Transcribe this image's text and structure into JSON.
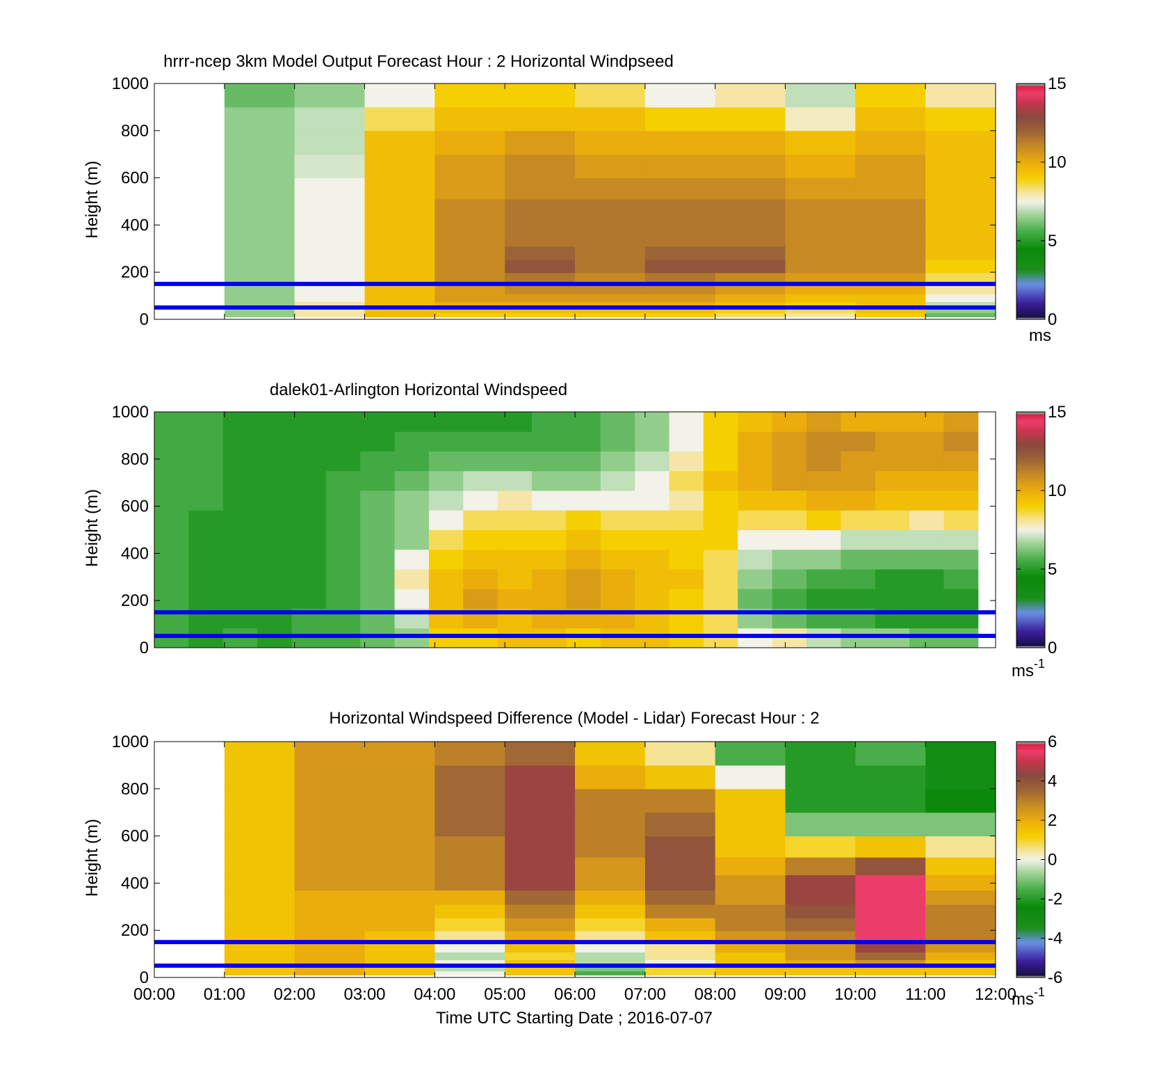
{
  "figure": {
    "shared_xlabel": "Time UTC  Starting Date ; 2016-07-07",
    "x_tick_labels": [
      "00:00",
      "01:00",
      "02:00",
      "03:00",
      "04:00",
      "05:00",
      "06:00",
      "07:00",
      "08:00",
      "09:00",
      "10:00",
      "11:00",
      "12:00"
    ],
    "overlay_line_color": "#0000ee",
    "overlay_heights_m": [
      50,
      150
    ]
  },
  "chart_data": [
    {
      "type": "heatmap",
      "title": "hrrr-ncep 3km Model Output   Forecast Hour : 2 Horizontal Windpseed",
      "ylabel": "Height (m)",
      "xlabel": "",
      "ylim": [
        0,
        1000
      ],
      "y_ticks": [
        0,
        200,
        400,
        600,
        800,
        1000
      ],
      "colorbar": {
        "range": [
          0,
          15
        ],
        "ticks": [
          0,
          5,
          10,
          15
        ],
        "unit": "ms",
        "unit_exp": ""
      },
      "x_hours": [
        1,
        2,
        3,
        4,
        5,
        6,
        7,
        8,
        9,
        10,
        11
      ],
      "y_levels_m": [
        20,
        35,
        60,
        90,
        125,
        170,
        225,
        280,
        340,
        400,
        470,
        550,
        650,
        750,
        850,
        950
      ],
      "values": [
        [
          6.5,
          8.0,
          9.5,
          9.0,
          9.0,
          9.0,
          9.0,
          8.5,
          8.0,
          9.0,
          6.0
        ],
        [
          6.5,
          8.0,
          9.5,
          9.5,
          9.5,
          9.5,
          9.5,
          9.0,
          8.5,
          9.5,
          6.5
        ],
        [
          6.5,
          8.0,
          9.5,
          10.0,
          10.0,
          10.0,
          10.0,
          9.5,
          9.0,
          9.5,
          7.0
        ],
        [
          6.5,
          7.5,
          9.5,
          10.5,
          10.5,
          10.5,
          10.5,
          10.0,
          9.5,
          9.5,
          7.5
        ],
        [
          6.5,
          7.5,
          9.5,
          10.5,
          11.0,
          11.0,
          11.0,
          10.5,
          10.0,
          10.0,
          8.0
        ],
        [
          6.5,
          7.5,
          9.5,
          11.0,
          11.5,
          11.0,
          11.5,
          11.0,
          10.5,
          10.5,
          8.5
        ],
        [
          6.5,
          7.5,
          9.5,
          11.0,
          12.5,
          11.5,
          12.5,
          12.5,
          11.0,
          11.0,
          9.0
        ],
        [
          6.5,
          7.5,
          9.5,
          11.0,
          12.0,
          11.5,
          12.0,
          12.0,
          11.0,
          11.0,
          9.5
        ],
        [
          6.5,
          7.5,
          9.5,
          11.0,
          11.5,
          11.5,
          11.5,
          11.5,
          11.0,
          11.0,
          9.5
        ],
        [
          6.5,
          7.5,
          9.5,
          11.0,
          11.5,
          11.5,
          11.5,
          11.5,
          11.0,
          11.0,
          9.5
        ],
        [
          6.5,
          7.5,
          9.5,
          11.0,
          11.5,
          11.5,
          11.5,
          11.5,
          11.0,
          11.0,
          9.5
        ],
        [
          6.5,
          7.5,
          9.5,
          10.5,
          11.0,
          11.0,
          11.0,
          11.0,
          10.5,
          10.5,
          9.5
        ],
        [
          6.5,
          7.2,
          9.5,
          10.5,
          11.0,
          10.5,
          10.5,
          10.5,
          10.0,
          10.5,
          9.5
        ],
        [
          6.5,
          7.0,
          9.5,
          10.0,
          10.5,
          10.0,
          10.0,
          10.0,
          9.5,
          10.0,
          9.5
        ],
        [
          6.5,
          7.0,
          8.5,
          9.5,
          9.5,
          9.5,
          9.0,
          9.0,
          7.8,
          9.5,
          9.0
        ],
        [
          6.0,
          6.5,
          7.5,
          9.0,
          9.0,
          8.5,
          7.5,
          8.0,
          7.0,
          9.0,
          8.0
        ]
      ]
    },
    {
      "type": "heatmap",
      "title": "dalek01-Arlington  Horizontal Windspeed",
      "ylabel": "Height (m)",
      "xlabel": "",
      "ylim": [
        0,
        1000
      ],
      "y_ticks": [
        0,
        200,
        400,
        600,
        800,
        1000
      ],
      "colorbar": {
        "range": [
          0,
          15
        ],
        "ticks": [
          0,
          5,
          10,
          15
        ],
        "unit": "ms",
        "unit_exp": "-1"
      },
      "x_range_h": [
        0,
        11.75
      ],
      "y_range_m": [
        0,
        1000
      ],
      "values": [
        [
          5.5,
          5.0,
          5.5,
          5.0,
          5.5,
          5.5,
          6.0,
          6.5,
          9.0,
          9.0,
          9.5,
          9.5,
          9.0,
          9.5,
          9.5,
          9.0,
          8.5,
          7.5,
          8.0,
          7.0,
          6.5,
          6.5,
          6.0,
          6.0
        ],
        [
          5.5,
          5.0,
          5.0,
          5.0,
          5.5,
          5.5,
          6.0,
          7.0,
          9.5,
          10.0,
          9.5,
          10.0,
          10.0,
          10.0,
          9.5,
          9.0,
          8.5,
          6.5,
          6.0,
          5.5,
          5.5,
          5.0,
          5.0,
          5.0
        ],
        [
          5.5,
          5.0,
          5.0,
          5.0,
          5.0,
          5.5,
          6.0,
          7.5,
          9.5,
          10.5,
          10.0,
          10.0,
          10.5,
          10.0,
          9.5,
          9.0,
          8.5,
          6.0,
          5.5,
          5.0,
          5.0,
          5.0,
          5.0,
          5.0
        ],
        [
          5.5,
          5.0,
          5.0,
          5.0,
          5.0,
          5.5,
          6.0,
          8.0,
          9.5,
          10.0,
          9.5,
          10.0,
          10.5,
          10.0,
          9.5,
          9.5,
          8.5,
          6.5,
          6.0,
          5.5,
          5.5,
          5.0,
          5.0,
          5.5
        ],
        [
          5.5,
          5.0,
          5.0,
          5.0,
          5.0,
          5.5,
          6.0,
          7.5,
          9.0,
          9.5,
          9.5,
          9.5,
          10.0,
          9.5,
          9.5,
          9.0,
          8.5,
          7.0,
          6.5,
          6.5,
          6.0,
          6.0,
          6.0,
          6.0
        ],
        [
          5.5,
          5.0,
          5.0,
          5.0,
          5.0,
          5.5,
          6.0,
          6.5,
          8.5,
          9.0,
          9.0,
          9.0,
          9.5,
          9.0,
          9.0,
          9.0,
          9.0,
          7.5,
          7.5,
          7.5,
          7.0,
          7.0,
          7.0,
          7.0
        ],
        [
          5.5,
          5.0,
          5.0,
          5.0,
          5.0,
          5.5,
          6.0,
          6.5,
          7.5,
          8.5,
          8.5,
          8.5,
          9.0,
          8.5,
          8.5,
          8.5,
          9.0,
          8.5,
          8.5,
          9.0,
          8.5,
          8.5,
          8.0,
          8.5
        ],
        [
          5.5,
          5.5,
          5.0,
          5.0,
          5.0,
          5.5,
          6.0,
          6.5,
          7.0,
          7.5,
          8.0,
          7.5,
          7.5,
          7.5,
          7.5,
          8.0,
          9.0,
          9.5,
          9.5,
          10.0,
          10.0,
          9.5,
          9.5,
          9.5
        ],
        [
          5.5,
          5.5,
          5.0,
          5.0,
          5.0,
          5.5,
          5.5,
          6.0,
          6.5,
          7.0,
          7.0,
          6.5,
          6.5,
          7.0,
          7.5,
          8.5,
          9.5,
          10.0,
          10.5,
          10.5,
          10.5,
          10.0,
          10.0,
          10.0
        ],
        [
          5.5,
          5.5,
          5.0,
          5.0,
          5.0,
          5.0,
          5.5,
          5.5,
          6.0,
          6.0,
          6.0,
          6.0,
          6.0,
          6.5,
          7.0,
          8.0,
          9.0,
          10.0,
          10.5,
          11.0,
          10.5,
          10.5,
          10.5,
          10.5
        ],
        [
          5.5,
          5.5,
          5.0,
          5.0,
          5.0,
          5.0,
          5.0,
          5.5,
          5.5,
          5.5,
          5.5,
          5.5,
          5.5,
          6.0,
          6.5,
          7.5,
          9.0,
          10.0,
          10.5,
          11.0,
          11.0,
          10.5,
          10.5,
          11.0
        ],
        [
          5.5,
          5.5,
          5.0,
          5.0,
          5.0,
          5.0,
          5.0,
          5.0,
          5.0,
          5.0,
          5.0,
          5.5,
          5.5,
          6.0,
          6.5,
          7.5,
          9.0,
          9.5,
          10.0,
          10.5,
          10.0,
          10.0,
          10.0,
          10.5
        ]
      ]
    },
    {
      "type": "heatmap",
      "title": "Horizontal Windspeed Difference (Model - Lidar) Forecast Hour : 2",
      "ylabel": "Height (m)",
      "xlabel": "Time UTC  Starting Date ; 2016-07-07",
      "ylim": [
        0,
        1000
      ],
      "y_ticks": [
        0,
        200,
        400,
        600,
        800,
        1000
      ],
      "colorbar": {
        "range": [
          -6,
          6
        ],
        "ticks": [
          -6,
          -4,
          -2,
          0,
          2,
          4,
          6
        ],
        "unit": "ms",
        "unit_exp": "-1"
      },
      "x_hours": [
        1,
        2,
        3,
        4,
        5,
        6,
        7,
        8,
        9,
        10,
        11
      ],
      "y_levels_m": [
        20,
        35,
        60,
        90,
        125,
        170,
        225,
        280,
        340,
        400,
        470,
        550,
        650,
        750,
        850,
        950
      ],
      "values": [
        [
          1.5,
          2.0,
          1.5,
          0.0,
          1.5,
          -1.5,
          1.0,
          1.5,
          1.5,
          1.5,
          1.5
        ],
        [
          1.5,
          2.0,
          1.5,
          -0.5,
          1.5,
          -1.0,
          1.0,
          1.5,
          1.5,
          1.5,
          1.5
        ],
        [
          1.5,
          2.0,
          1.5,
          0.0,
          1.5,
          -0.5,
          0.0,
          1.5,
          2.0,
          2.5,
          1.5
        ],
        [
          1.5,
          2.0,
          1.5,
          -0.5,
          1.0,
          -0.5,
          0.5,
          1.5,
          2.5,
          3.5,
          2.0
        ],
        [
          1.5,
          2.0,
          1.5,
          0.0,
          1.5,
          0.0,
          0.5,
          2.0,
          2.5,
          4.5,
          2.5
        ],
        [
          1.5,
          2.0,
          1.5,
          0.5,
          2.0,
          0.5,
          1.5,
          2.5,
          3.0,
          5.5,
          3.0
        ],
        [
          1.5,
          2.0,
          2.0,
          1.0,
          2.5,
          1.0,
          2.0,
          3.0,
          3.5,
          5.5,
          3.0
        ],
        [
          1.5,
          2.0,
          2.0,
          1.5,
          3.0,
          1.5,
          3.0,
          3.0,
          4.0,
          5.5,
          3.0
        ],
        [
          1.5,
          2.0,
          2.0,
          2.0,
          3.5,
          2.0,
          3.5,
          2.5,
          4.5,
          5.5,
          2.5
        ],
        [
          1.5,
          2.5,
          2.5,
          3.0,
          4.5,
          2.5,
          4.0,
          2.5,
          4.5,
          5.5,
          2.0
        ],
        [
          1.5,
          2.5,
          2.5,
          3.0,
          4.5,
          2.5,
          4.0,
          2.0,
          3.0,
          4.0,
          1.5
        ],
        [
          1.5,
          2.5,
          2.5,
          3.0,
          4.5,
          3.0,
          4.0,
          1.5,
          1.0,
          1.5,
          0.5
        ],
        [
          1.5,
          2.5,
          2.5,
          3.5,
          4.5,
          3.0,
          3.5,
          1.5,
          -1.0,
          -1.0,
          -1.0
        ],
        [
          1.5,
          2.5,
          2.5,
          3.5,
          4.5,
          3.0,
          3.0,
          1.5,
          -2.0,
          -2.0,
          -2.5
        ],
        [
          1.5,
          2.5,
          2.5,
          3.5,
          4.5,
          2.0,
          1.5,
          0.0,
          -2.0,
          -2.0,
          -3.0
        ],
        [
          1.5,
          2.5,
          2.5,
          3.0,
          3.5,
          1.5,
          0.5,
          -1.5,
          -2.0,
          -1.5,
          -3.0
        ]
      ]
    }
  ]
}
